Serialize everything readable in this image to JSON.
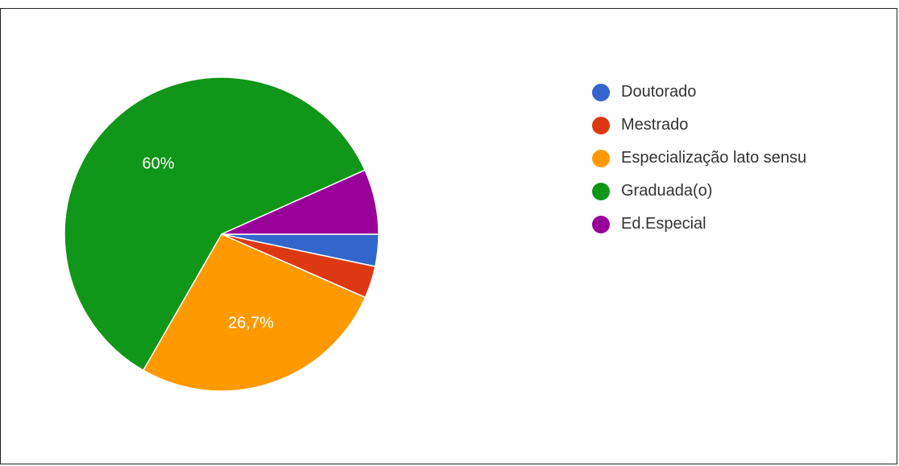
{
  "chart_data": {
    "type": "pie",
    "categories": [
      "Doutorado",
      "Mestrado",
      "Especialização lato sensu",
      "Graduada(o)",
      "Ed.Especial"
    ],
    "values": [
      3.3,
      3.3,
      26.7,
      60,
      6.7
    ],
    "colors": [
      "#3366cc",
      "#dc3912",
      "#ff9900",
      "#109618",
      "#990099"
    ],
    "data_labels": [
      "",
      "",
      "26,7%",
      "60%",
      ""
    ],
    "legend": "right"
  }
}
